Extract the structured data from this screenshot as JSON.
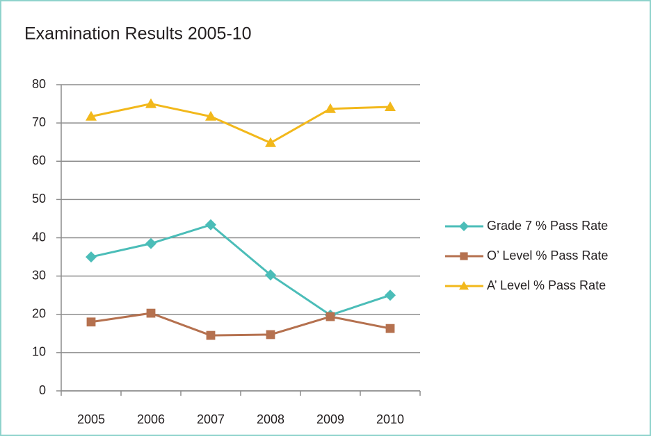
{
  "chart_data": {
    "type": "line",
    "title": "Examination Results 2005-10",
    "categories": [
      "2005",
      "2006",
      "2007",
      "2008",
      "2009",
      "2010"
    ],
    "series": [
      {
        "name": "Grade 7 % Pass Rate",
        "color": "#4bbdb8",
        "marker": "diamond",
        "values": [
          35.0,
          38.5,
          43.4,
          30.3,
          19.8,
          25.0
        ]
      },
      {
        "name": "O’ Level % Pass Rate",
        "color": "#b5714f",
        "marker": "square",
        "values": [
          18.0,
          20.3,
          14.5,
          14.7,
          19.4,
          16.3
        ]
      },
      {
        "name": "A’ Level % Pass Rate",
        "color": "#f2b81b",
        "marker": "triangle",
        "values": [
          71.7,
          75.0,
          71.7,
          64.8,
          73.7,
          74.2
        ]
      }
    ],
    "ylim": [
      0,
      80
    ],
    "yticks": [
      0,
      10,
      20,
      30,
      40,
      50,
      60,
      70,
      80
    ],
    "grid": true,
    "legend": "right"
  }
}
